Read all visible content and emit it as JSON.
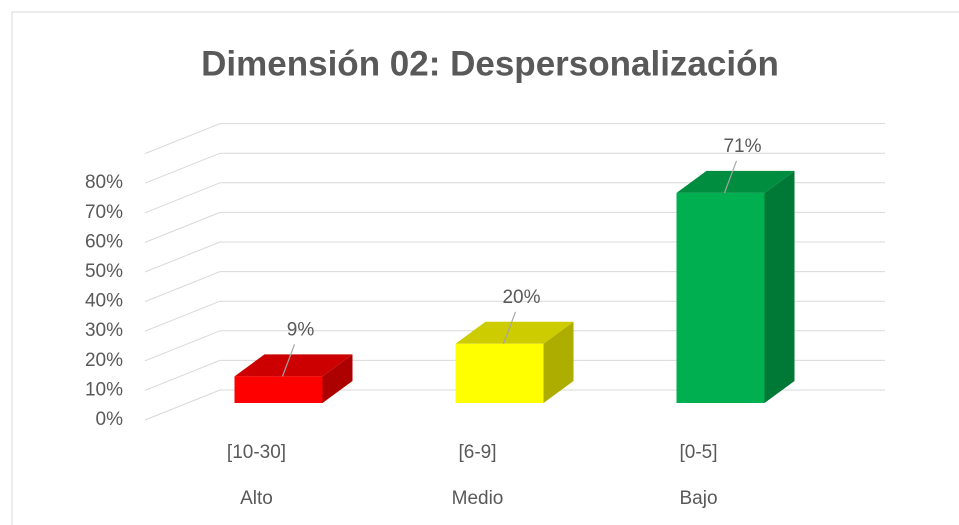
{
  "chart_data": {
    "type": "bar3d",
    "title": "Dimensión 02: Despersonalización",
    "categories": [
      "[10-30]",
      "[6-9]",
      "[0-5]"
    ],
    "category_groups": [
      "Alto",
      "Medio",
      "Bajo"
    ],
    "values": [
      9,
      20,
      71
    ],
    "value_labels": [
      "9%",
      "20%",
      "71%"
    ],
    "colors": [
      "#ff0000",
      "#ffff00",
      "#00b050"
    ],
    "ylim": [
      0,
      90
    ],
    "yticks": [
      {
        "value": 0,
        "label": "0%"
      },
      {
        "value": 10,
        "label": "10%"
      },
      {
        "value": 20,
        "label": "20%"
      },
      {
        "value": 30,
        "label": "30%"
      },
      {
        "value": 40,
        "label": "40%"
      },
      {
        "value": 50,
        "label": "50%"
      },
      {
        "value": 60,
        "label": "60%"
      },
      {
        "value": 70,
        "label": "70%"
      },
      {
        "value": 80,
        "label": "80%"
      }
    ],
    "grid": true
  }
}
